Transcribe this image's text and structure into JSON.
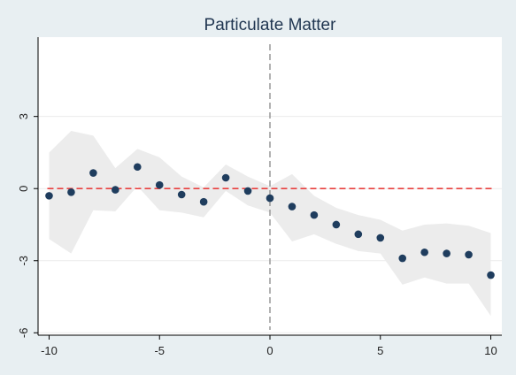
{
  "chart_data": {
    "type": "scatter",
    "title": "Particulate Matter",
    "xlabel": "",
    "ylabel": "",
    "xlim": [
      -10.5,
      10.5
    ],
    "ylim": [
      -6.1,
      6.3
    ],
    "xticks": [
      -10,
      -5,
      0,
      5,
      10
    ],
    "yticks": [
      -6,
      -3,
      0,
      3
    ],
    "grid": "horizontal",
    "legend": "none",
    "reference_lines": {
      "horizontal_y": 0,
      "vertical_x": 0
    },
    "x": [
      -10,
      -9,
      -8,
      -7,
      -6,
      -5,
      -4,
      -3,
      -2,
      -1,
      0,
      1,
      2,
      3,
      4,
      5,
      6,
      7,
      8,
      9,
      10
    ],
    "y": [
      -0.3,
      -0.15,
      0.65,
      -0.05,
      0.9,
      0.15,
      -0.25,
      -0.55,
      0.45,
      -0.1,
      -0.4,
      -0.75,
      -1.1,
      -1.5,
      -1.9,
      -2.05,
      -2.9,
      -2.65,
      -2.7,
      -2.75,
      -3.6
    ],
    "ci_lower": [
      -2.1,
      -2.7,
      -0.9,
      -0.95,
      0.1,
      -0.9,
      -1.0,
      -1.2,
      -0.1,
      -0.7,
      -1.0,
      -2.2,
      -1.9,
      -2.3,
      -2.6,
      -2.7,
      -4.0,
      -3.7,
      -3.95,
      -3.95,
      -5.3
    ],
    "ci_upper": [
      1.5,
      2.4,
      2.2,
      0.85,
      1.65,
      1.3,
      0.5,
      0.05,
      1.0,
      0.5,
      0.1,
      0.6,
      -0.3,
      -0.8,
      -1.1,
      -1.3,
      -1.75,
      -1.5,
      -1.45,
      -1.55,
      -1.85
    ],
    "colors": {
      "background": "#e8eff2",
      "plot_background": "#ffffff",
      "marker": "#1f3d5e",
      "ci_band": "#ececec",
      "zero_line": "#e8403f",
      "vertical_line": "#999999",
      "gridline": "#ececec"
    }
  }
}
